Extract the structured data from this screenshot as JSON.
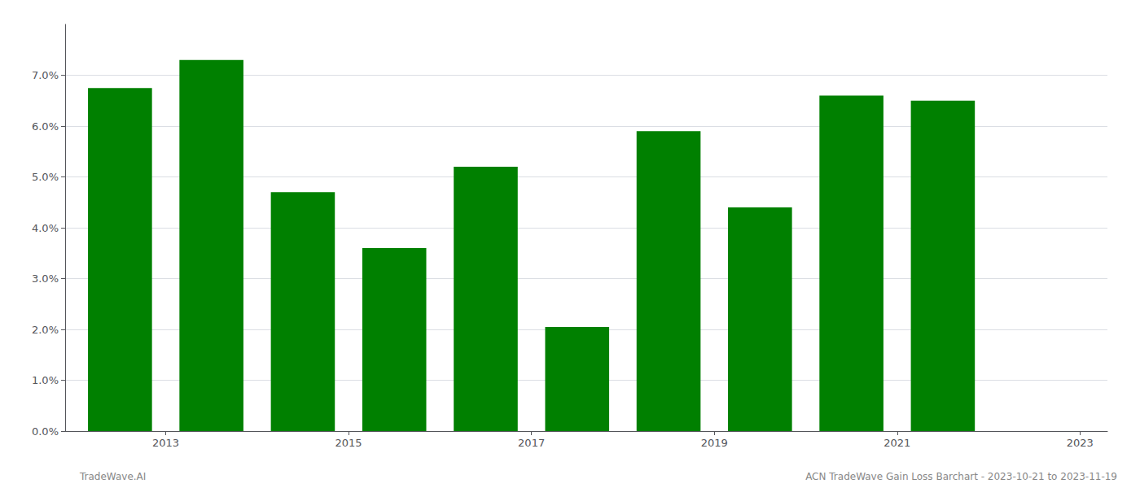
{
  "chart_data": {
    "type": "bar",
    "x": [
      2013,
      2014,
      2015,
      2016,
      2017,
      2018,
      2019,
      2020,
      2021,
      2022
    ],
    "values": [
      0.0675,
      0.073,
      0.047,
      0.036,
      0.052,
      0.0205,
      0.059,
      0.044,
      0.066,
      0.065
    ],
    "color": "#008000",
    "xlim": [
      2012.4,
      2023.8
    ],
    "xticks": [
      {
        "value": 2013.5,
        "label": "2013"
      },
      {
        "value": 2015.5,
        "label": "2015"
      },
      {
        "value": 2017.5,
        "label": "2017"
      },
      {
        "value": 2019.5,
        "label": "2019"
      },
      {
        "value": 2021.5,
        "label": "2021"
      },
      {
        "value": 2023.5,
        "label": "2023"
      }
    ],
    "ylim": [
      0,
      0.08
    ],
    "yticks": [
      {
        "value": 0.0,
        "label": "0.0%"
      },
      {
        "value": 0.01,
        "label": "1.0%"
      },
      {
        "value": 0.02,
        "label": "2.0%"
      },
      {
        "value": 0.03,
        "label": "3.0%"
      },
      {
        "value": 0.04,
        "label": "4.0%"
      },
      {
        "value": 0.05,
        "label": "5.0%"
      },
      {
        "value": 0.06,
        "label": "6.0%"
      },
      {
        "value": 0.07,
        "label": "7.0%"
      }
    ],
    "grid": true,
    "annotations": [
      "TradeWave.AI",
      "ACN TradeWave Gain Loss Barchart - 2023-10-21 to 2023-11-19"
    ]
  }
}
